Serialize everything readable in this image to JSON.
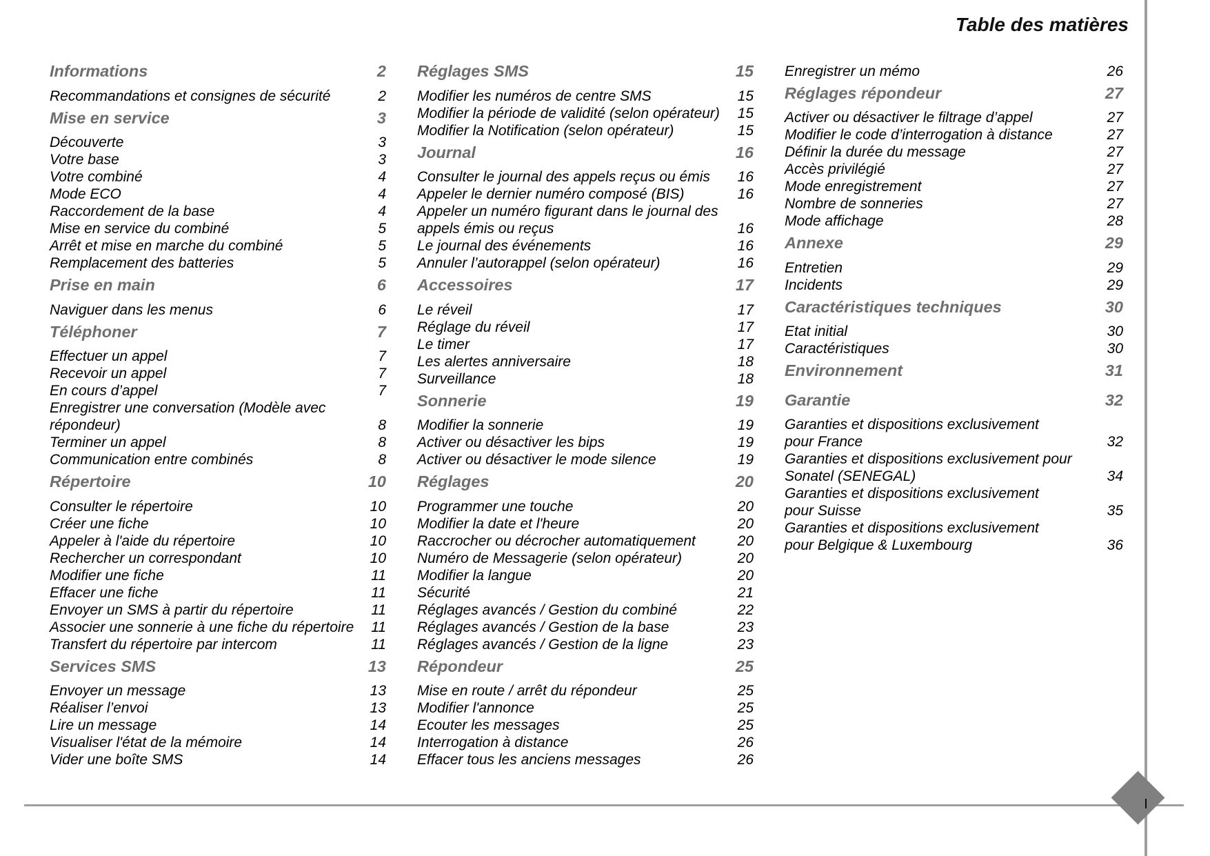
{
  "title": "Table des matières",
  "page_number": "I",
  "colors": {
    "heading": "#6e6e6e",
    "rule": "#9e9e9e",
    "diamond": "#808080"
  },
  "columns": [
    {
      "entries": [
        {
          "type": "heading",
          "title": "Informations",
          "page": "2"
        },
        {
          "type": "item",
          "title": "Recommandations et consignes de sécurité",
          "page": "2"
        },
        {
          "type": "heading",
          "title": "Mise en service",
          "page": "3"
        },
        {
          "type": "item",
          "title": "Découverte",
          "page": "3"
        },
        {
          "type": "item",
          "title": "Votre base",
          "page": "3"
        },
        {
          "type": "item",
          "title": "Votre combiné",
          "page": "4"
        },
        {
          "type": "item",
          "title": "Mode ECO",
          "page": "4"
        },
        {
          "type": "item",
          "title": "Raccordement de la base",
          "page": "4"
        },
        {
          "type": "item",
          "title": "Mise en service du combiné",
          "page": "5"
        },
        {
          "type": "item",
          "title": "Arrêt et mise en marche du combiné",
          "page": "5"
        },
        {
          "type": "item",
          "title": "Remplacement des batteries",
          "page": "5"
        },
        {
          "type": "heading",
          "title": "Prise en main",
          "page": "6"
        },
        {
          "type": "item",
          "title": "Naviguer dans les menus",
          "page": "6"
        },
        {
          "type": "heading",
          "title": "Téléphoner",
          "page": "7"
        },
        {
          "type": "item",
          "title": "Effectuer un appel",
          "page": "7"
        },
        {
          "type": "item",
          "title": "Recevoir un appel",
          "page": "7"
        },
        {
          "type": "item",
          "title": "En cours d’appel",
          "page": "7"
        },
        {
          "type": "item",
          "title": "Enregistrer une conversation (Modèle avec\nrépondeur)",
          "page": "8"
        },
        {
          "type": "item",
          "title": "Terminer un appel",
          "page": "8"
        },
        {
          "type": "item",
          "title": "Communication entre combinés",
          "page": "8"
        },
        {
          "type": "heading",
          "title": "Répertoire",
          "page": "10"
        },
        {
          "type": "item",
          "title": "Consulter le répertoire",
          "page": "10"
        },
        {
          "type": "item",
          "title": "Créer une fiche",
          "page": "10"
        },
        {
          "type": "item",
          "title": "Appeler à l'aide du répertoire",
          "page": "10"
        },
        {
          "type": "item",
          "title": "Rechercher un correspondant",
          "page": "10"
        },
        {
          "type": "item",
          "title": "Modifier une fiche",
          "page": "11"
        },
        {
          "type": "item",
          "title": "Effacer une fiche",
          "page": "11"
        },
        {
          "type": "item",
          "title": "Envoyer un SMS à partir du répertoire",
          "page": "11"
        },
        {
          "type": "item",
          "title": "Associer une sonnerie à une fiche du répertoire",
          "page": "11"
        },
        {
          "type": "item",
          "title": "Transfert du répertoire par intercom",
          "page": "11"
        },
        {
          "type": "heading",
          "title": "Services SMS",
          "page": "13"
        },
        {
          "type": "item",
          "title": "Envoyer un message",
          "page": "13"
        },
        {
          "type": "item",
          "title": "Réaliser l’envoi",
          "page": "13"
        },
        {
          "type": "item",
          "title": "Lire un message",
          "page": "14"
        },
        {
          "type": "item",
          "title": "Visualiser l'état de la mémoire",
          "page": "14"
        },
        {
          "type": "item",
          "title": "Vider une boîte SMS",
          "page": "14"
        }
      ]
    },
    {
      "entries": [
        {
          "type": "heading",
          "title": "Réglages SMS",
          "page": "15"
        },
        {
          "type": "item",
          "title": "Modifier les numéros de centre SMS",
          "page": "15"
        },
        {
          "type": "item",
          "title": "Modifier la période de validité (selon opérateur)",
          "page": "15"
        },
        {
          "type": "item",
          "title": "Modifier la Notification (selon opérateur)",
          "page": "15"
        },
        {
          "type": "heading",
          "title": "Journal",
          "page": "16"
        },
        {
          "type": "item",
          "title": "Consulter le journal des appels reçus ou émis",
          "page": "16"
        },
        {
          "type": "item",
          "title": "Appeler le dernier numéro composé (BIS)",
          "page": "16"
        },
        {
          "type": "item",
          "title": "Appeler un numéro figurant dans le journal des\nappels émis ou reçus",
          "page": "16"
        },
        {
          "type": "item",
          "title": "Le journal des événements",
          "page": "16"
        },
        {
          "type": "item",
          "title": "Annuler l’autorappel (selon opérateur)",
          "page": "16"
        },
        {
          "type": "heading",
          "title": "Accessoires",
          "page": "17"
        },
        {
          "type": "item",
          "title": "Le réveil",
          "page": "17"
        },
        {
          "type": "item",
          "title": "Réglage du réveil",
          "page": "17"
        },
        {
          "type": "item",
          "title": "Le timer",
          "page": "17"
        },
        {
          "type": "item",
          "title": "Les alertes anniversaire",
          "page": "18"
        },
        {
          "type": "item",
          "title": "Surveillance",
          "page": "18"
        },
        {
          "type": "heading",
          "title": "Sonnerie",
          "page": "19"
        },
        {
          "type": "item",
          "title": "Modifier la sonnerie",
          "page": "19"
        },
        {
          "type": "item",
          "title": "Activer ou désactiver les bips",
          "page": "19"
        },
        {
          "type": "item",
          "title": "Activer ou désactiver le mode silence",
          "page": "19"
        },
        {
          "type": "heading",
          "title": "Réglages",
          "page": "20"
        },
        {
          "type": "item",
          "title": "Programmer une touche",
          "page": "20"
        },
        {
          "type": "item",
          "title": "Modifier la date et l'heure",
          "page": "20"
        },
        {
          "type": "item",
          "title": "Raccrocher ou décrocher automatiquement",
          "page": "20"
        },
        {
          "type": "item",
          "title": "Numéro de Messagerie (selon opérateur)",
          "page": "20"
        },
        {
          "type": "item",
          "title": "Modifier la langue",
          "page": "20"
        },
        {
          "type": "item",
          "title": "Sécurité",
          "page": "21"
        },
        {
          "type": "item",
          "title": "Réglages avancés / Gestion du combiné",
          "page": "22"
        },
        {
          "type": "item",
          "title": "Réglages avancés / Gestion de la base",
          "page": "23"
        },
        {
          "type": "item",
          "title": "Réglages avancés / Gestion de la ligne",
          "page": "23"
        },
        {
          "type": "heading",
          "title": "Répondeur",
          "page": "25"
        },
        {
          "type": "item",
          "title": "Mise en route / arrêt du répondeur",
          "page": "25"
        },
        {
          "type": "item",
          "title": "Modifier l'annonce",
          "page": "25"
        },
        {
          "type": "item",
          "title": "Ecouter les messages",
          "page": "25"
        },
        {
          "type": "item",
          "title": "Interrogation à distance",
          "page": "26"
        },
        {
          "type": "item",
          "title": "Effacer tous les anciens messages",
          "page": "26"
        }
      ]
    },
    {
      "entries": [
        {
          "type": "item",
          "title": "Enregistrer un mémo",
          "page": "26"
        },
        {
          "type": "heading",
          "title": "Réglages répondeur",
          "page": "27"
        },
        {
          "type": "item",
          "title": "Activer ou désactiver le filtrage d’appel",
          "page": "27"
        },
        {
          "type": "item",
          "title": "Modifier le code d’interrogation à distance",
          "page": "27"
        },
        {
          "type": "item",
          "title": "Définir la durée du message",
          "page": "27"
        },
        {
          "type": "item",
          "title": "Accès privilégié",
          "page": "27"
        },
        {
          "type": "item",
          "title": "Mode enregistrement",
          "page": "27"
        },
        {
          "type": "item",
          "title": "Nombre de sonneries",
          "page": "27"
        },
        {
          "type": "item",
          "title": "Mode affichage",
          "page": "28"
        },
        {
          "type": "heading",
          "title": "Annexe",
          "page": "29"
        },
        {
          "type": "item",
          "title": "Entretien",
          "page": "29"
        },
        {
          "type": "item",
          "title": "Incidents",
          "page": "29"
        },
        {
          "type": "heading",
          "title": "Caractéristiques techniques",
          "page": "30"
        },
        {
          "type": "item",
          "title": "Etat initial",
          "page": "30"
        },
        {
          "type": "item",
          "title": "Caractéristiques",
          "page": "30"
        },
        {
          "type": "heading",
          "title": "Environnement",
          "page": "31"
        },
        {
          "type": "heading",
          "title": "Garantie",
          "page": "32"
        },
        {
          "type": "item",
          "title": "Garanties et dispositions exclusivement\npour France",
          "page": "32"
        },
        {
          "type": "item",
          "title": "Garanties et dispositions exclusivement pour\nSonatel (SENEGAL)",
          "page": "34"
        },
        {
          "type": "item",
          "title": "Garanties et dispositions exclusivement\npour Suisse",
          "page": "35"
        },
        {
          "type": "item",
          "title": "Garanties et dispositions exclusivement\npour Belgique & Luxembourg",
          "page": "36"
        }
      ]
    }
  ]
}
